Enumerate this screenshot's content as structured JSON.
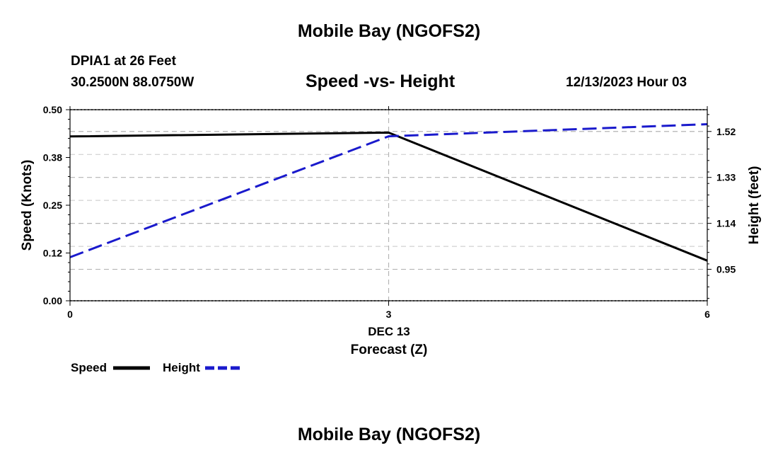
{
  "page": {
    "title_top": "Mobile Bay (NGOFS2)",
    "title_bottom": "Mobile Bay (NGOFS2)",
    "station": "DPIA1 at 26 Feet",
    "coords": "30.2500N  88.0750W",
    "datetime": "12/13/2023 Hour 03"
  },
  "chart_data": {
    "type": "line",
    "title": "Speed -vs- Height",
    "xlabel": "Forecast (Z)",
    "xdate_label": "DEC 13",
    "ylabel_left": "Speed (Knots)",
    "ylabel_right": "Height (feet)",
    "x": [
      0,
      3,
      6
    ],
    "xlim": [
      0,
      6
    ],
    "xticks": [
      {
        "value": 0,
        "label": "0"
      },
      {
        "value": 3,
        "label": "3"
      },
      {
        "value": 6,
        "label": "6"
      }
    ],
    "ylim_left": [
      0,
      0.5
    ],
    "yticks_left": [
      {
        "value": 0.0,
        "label": "0.00"
      },
      {
        "value": 0.125,
        "label": "0.12"
      },
      {
        "value": 0.25,
        "label": "0.25"
      },
      {
        "value": 0.375,
        "label": "0.38"
      },
      {
        "value": 0.5,
        "label": "0.50"
      }
    ],
    "ylim_right": [
      0.82,
      1.61
    ],
    "yticks_right": [
      {
        "value": 0.95,
        "label": "0.95"
      },
      {
        "value": 1.14,
        "label": "1.14"
      },
      {
        "value": 1.33,
        "label": "1.33"
      },
      {
        "value": 1.52,
        "label": "1.52"
      }
    ],
    "series": [
      {
        "name": "Speed",
        "axis": "left",
        "color": "#000000",
        "dash": "solid",
        "values": [
          0.43,
          0.44,
          0.105
        ]
      },
      {
        "name": "Height",
        "axis": "right",
        "color": "#1a1acc",
        "dash": "dashed",
        "values": [
          1.0,
          1.5,
          1.55
        ]
      }
    ],
    "grid": true,
    "legend": {
      "position": "bottom-left",
      "items": [
        "Speed",
        "Height"
      ]
    }
  }
}
